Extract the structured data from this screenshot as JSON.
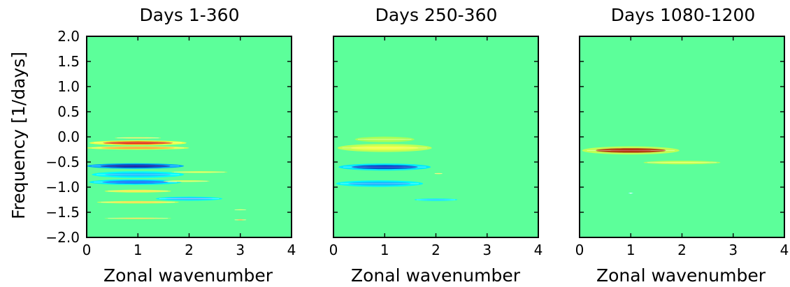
{
  "chart_data": [
    {
      "type": "heatmap",
      "title": "Days 1-360",
      "xlabel": "Zonal wavenumber",
      "ylabel": "Frequency [1/days]",
      "xlim": [
        0,
        4
      ],
      "ylim": [
        -2.0,
        2.0
      ],
      "x_ticks": [
        "0",
        "1",
        "2",
        "3",
        "4"
      ],
      "y_ticks": [
        "2.0",
        "1.5",
        "1.0",
        "0.5",
        "0.0",
        "−0.5",
        "−1.0",
        "−1.5",
        "−2.0"
      ],
      "background_color": "#5cff9a",
      "features": [
        {
          "x": 1.0,
          "y": -0.02,
          "x_half_width": 0.45,
          "y_half_height": 0.012,
          "color": "#f7ff45",
          "core_color": "#ffe33d"
        },
        {
          "x": 1.0,
          "y": -0.12,
          "x_half_width": 0.95,
          "y_half_height": 0.05,
          "color": "#f2ff43",
          "core_color": "#e00000"
        },
        {
          "x": 1.0,
          "y": -0.22,
          "x_half_width": 1.0,
          "y_half_height": 0.035,
          "color": "#e5ff45",
          "core_color": "#ff8a1f"
        },
        {
          "x": 0.95,
          "y": -0.58,
          "x_half_width": 0.95,
          "y_half_height": 0.055,
          "color": "#00a6ff",
          "core_color": "#00008f"
        },
        {
          "x": 2.2,
          "y": -0.7,
          "x_half_width": 0.55,
          "y_half_height": 0.02,
          "color": "#b9ff59",
          "core_color": "#d7ff4b"
        },
        {
          "x": 1.0,
          "y": -0.75,
          "x_half_width": 0.9,
          "y_half_height": 0.065,
          "color": "#00fbff",
          "core_color": "#18b5ff"
        },
        {
          "x": 0.95,
          "y": -0.9,
          "x_half_width": 0.9,
          "y_half_height": 0.055,
          "color": "#00efff",
          "core_color": "#0058ff"
        },
        {
          "x": 1.95,
          "y": -0.88,
          "x_half_width": 0.45,
          "y_half_height": 0.018,
          "color": "#c8ff58",
          "core_color": "#d7ff4b"
        },
        {
          "x": 1.0,
          "y": -1.08,
          "x_half_width": 0.65,
          "y_half_height": 0.028,
          "color": "#d7ff4b",
          "core_color": "#ffe33d"
        },
        {
          "x": 2.0,
          "y": -1.23,
          "x_half_width": 0.65,
          "y_half_height": 0.04,
          "color": "#00f5ff",
          "core_color": "#4aa6ff"
        },
        {
          "x": 1.0,
          "y": -1.3,
          "x_half_width": 0.8,
          "y_half_height": 0.025,
          "color": "#d9ff4c",
          "core_color": "#ffcf38"
        },
        {
          "x": 3.0,
          "y": -1.45,
          "x_half_width": 0.12,
          "y_half_height": 0.01,
          "color": "#c5ff56",
          "core_color": "#d7ff4b"
        },
        {
          "x": 1.0,
          "y": -1.62,
          "x_half_width": 0.65,
          "y_half_height": 0.015,
          "color": "#b9ff59",
          "core_color": "#ffd53b"
        },
        {
          "x": 3.0,
          "y": -1.65,
          "x_half_width": 0.12,
          "y_half_height": 0.012,
          "color": "#c5ff56",
          "core_color": "#ff9b2e"
        }
      ]
    },
    {
      "type": "heatmap",
      "title": "Days 250-360",
      "xlabel": "Zonal wavenumber",
      "ylabel": "",
      "xlim": [
        0,
        4
      ],
      "ylim": [
        -2.0,
        2.0
      ],
      "x_ticks": [
        "0",
        "1",
        "2",
        "3",
        "4"
      ],
      "y_ticks": [],
      "background_color": "#5cff9a",
      "features": [
        {
          "x": 1.0,
          "y": -0.05,
          "x_half_width": 0.58,
          "y_half_height": 0.055,
          "color": "#a7ff58",
          "core_color": "#b8ff57"
        },
        {
          "x": 1.0,
          "y": -0.22,
          "x_half_width": 0.92,
          "y_half_height": 0.08,
          "color": "#c4ff52",
          "core_color": "#f8ff45"
        },
        {
          "x": 1.0,
          "y": -0.6,
          "x_half_width": 0.9,
          "y_half_height": 0.07,
          "color": "#00e8ff",
          "core_color": "#0015b8"
        },
        {
          "x": 2.05,
          "y": -0.73,
          "x_half_width": 0.08,
          "y_half_height": 0.012,
          "color": "#d7ff4b",
          "core_color": "#ffe33d"
        },
        {
          "x": 0.9,
          "y": -0.93,
          "x_half_width": 0.85,
          "y_half_height": 0.065,
          "color": "#00f7ff",
          "core_color": "#17a4ff"
        },
        {
          "x": 2.0,
          "y": -1.25,
          "x_half_width": 0.42,
          "y_half_height": 0.025,
          "color": "#00f9ff",
          "core_color": "#18c8ff"
        }
      ]
    },
    {
      "type": "heatmap",
      "title": "Days 1080-1200",
      "xlabel": "Zonal wavenumber",
      "ylabel": "",
      "xlim": [
        0,
        4
      ],
      "ylim": [
        -2.0,
        2.0
      ],
      "x_ticks": [
        "0",
        "1",
        "2",
        "3",
        "4"
      ],
      "y_ticks": [],
      "background_color": "#5cff9a",
      "features": [
        {
          "x": 1.0,
          "y": -0.27,
          "x_half_width": 0.95,
          "y_half_height": 0.08,
          "color": "#c6ff52",
          "core_color": "#b00000"
        },
        {
          "x": 2.0,
          "y": -0.51,
          "x_half_width": 0.75,
          "y_half_height": 0.035,
          "color": "#b7ff58",
          "core_color": "#dfff4a"
        },
        {
          "x": 1.0,
          "y": -1.12,
          "x_half_width": 0.05,
          "y_half_height": 0.008,
          "color": "#00f4ff",
          "core_color": "#ffffff"
        }
      ]
    }
  ]
}
